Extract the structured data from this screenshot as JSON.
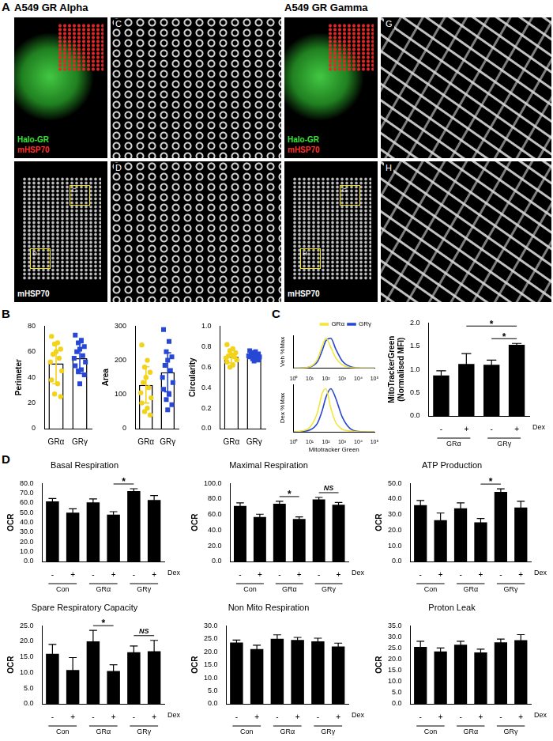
{
  "figure": {
    "panel_letters": [
      "A",
      "B",
      "C",
      "D"
    ],
    "panel_A": {
      "left": {
        "title": "A549 GR Alpha",
        "overlay_labels": [
          "Halo-GR",
          "mHSP70"
        ],
        "gray_label": "mHSP70",
        "inset_letters": [
          "C",
          "D"
        ]
      },
      "right": {
        "title": "A549 GR Gamma",
        "overlay_labels": [
          "Halo-GR",
          "mHSP70"
        ],
        "gray_label": "mHSP70",
        "inset_letters": [
          "G",
          "H"
        ]
      }
    }
  },
  "chart_data": [
    {
      "type": "bar",
      "y_label": "Perimeter",
      "categories": [
        "GRα",
        "GRγ"
      ],
      "values": [
        51,
        55
      ],
      "errors": [
        16,
        12
      ],
      "color": "#ffffff",
      "points": [
        {
          "color": "#f2d31b",
          "marker": "circle",
          "values": [
            72,
            67,
            66,
            62,
            60,
            58,
            55,
            52,
            45,
            38,
            35,
            27,
            25
          ]
        },
        {
          "color": "#2747d4",
          "marker": "square",
          "values": [
            73,
            69,
            67,
            64,
            62,
            60,
            57,
            55,
            52,
            49,
            46,
            45,
            42,
            35
          ]
        }
      ],
      "ylim": [
        0,
        80
      ],
      "yticks": [
        0,
        20,
        40,
        60,
        80
      ],
      "grid": false
    },
    {
      "type": "bar",
      "y_label": "Area",
      "categories": [
        "GRα",
        "GRγ"
      ],
      "values": [
        128,
        165
      ],
      "errors": [
        53,
        57
      ],
      "color": "#ffffff",
      "points": [
        {
          "color": "#f2d31b",
          "marker": "circle",
          "values": [
            245,
            200,
            180,
            165,
            150,
            135,
            120,
            105,
            90,
            75,
            60,
            50,
            40
          ]
        },
        {
          "color": "#2747d4",
          "marker": "square",
          "values": [
            290,
            255,
            225,
            210,
            200,
            185,
            170,
            150,
            135,
            115,
            100,
            85,
            70,
            55
          ]
        }
      ],
      "ylim": [
        0,
        300
      ],
      "yticks": [
        0,
        100,
        200,
        300
      ],
      "grid": false
    },
    {
      "type": "bar",
      "y_label": "Circularity",
      "categories": [
        "GRα",
        "GRγ"
      ],
      "values": [
        0.7,
        0.71
      ],
      "errors": [
        0.06,
        0.03
      ],
      "color": "#ffffff",
      "points": [
        {
          "color": "#f2d31b",
          "marker": "circle",
          "values": [
            0.82,
            0.78,
            0.76,
            0.74,
            0.72,
            0.71,
            0.7,
            0.69,
            0.67,
            0.65,
            0.62,
            0.6
          ]
        },
        {
          "color": "#2747d4",
          "marker": "square",
          "values": [
            0.76,
            0.75,
            0.74,
            0.73,
            0.72,
            0.72,
            0.71,
            0.71,
            0.7,
            0.7,
            0.69,
            0.68,
            0.67,
            0.66
          ]
        }
      ],
      "ylim": [
        0,
        1
      ],
      "yticks": [
        {
          "value": 0,
          "label": "0.0"
        },
        0.2,
        0.4,
        0.6,
        0.8,
        {
          "value": 1,
          "label": "1.0"
        }
      ],
      "grid": false
    },
    {
      "type": "line",
      "y_label": "Veh %Max",
      "log": "x",
      "x": [
        1,
        3,
        10,
        30,
        60,
        100,
        200,
        400,
        1000,
        3000,
        10000,
        100000
      ],
      "series": [
        {
          "name": "GRα",
          "color": "#f2e63a",
          "values": [
            0,
            1,
            5,
            30,
            75,
            100,
            70,
            35,
            12,
            3,
            1,
            0
          ]
        },
        {
          "name": "GRγ",
          "color": "#2747d4",
          "values": [
            0,
            1,
            4,
            22,
            60,
            92,
            100,
            65,
            25,
            6,
            1,
            0
          ]
        }
      ],
      "xlim": [
        1,
        100000
      ],
      "xticks": [
        {
          "value": 1,
          "label": "10⁰"
        },
        {
          "value": 10,
          "label": "10¹"
        },
        {
          "value": 100,
          "label": "10²"
        },
        {
          "value": 1000,
          "label": "10³"
        },
        {
          "value": 10000,
          "label": "10⁴"
        },
        {
          "value": 100000,
          "label": "10⁵"
        }
      ],
      "ylim": [
        0,
        110
      ],
      "yticks": [
        0,
        50,
        100
      ],
      "tick_labels": "x",
      "legend": "top-right",
      "grid": false
    },
    {
      "type": "line",
      "y_label": "Dex %Max",
      "x_label": "Mitotracker Green",
      "log": "x",
      "x": [
        1,
        3,
        10,
        30,
        60,
        100,
        200,
        400,
        1000,
        3000,
        10000,
        100000
      ],
      "series": [
        {
          "name": "GRα",
          "color": "#f2e63a",
          "values": [
            0,
            2,
            10,
            45,
            90,
            100,
            55,
            22,
            6,
            2,
            0,
            0
          ]
        },
        {
          "name": "GRγ",
          "color": "#2747d4",
          "values": [
            0,
            1,
            4,
            20,
            50,
            80,
            100,
            78,
            35,
            8,
            1,
            0
          ]
        }
      ],
      "xlim": [
        1,
        100000
      ],
      "xticks": [
        {
          "value": 1,
          "label": "10⁰"
        },
        {
          "value": 10,
          "label": "10¹"
        },
        {
          "value": 100,
          "label": "10²"
        },
        {
          "value": 1000,
          "label": "10³"
        },
        {
          "value": 10000,
          "label": "10⁴"
        },
        {
          "value": 100000,
          "label": "10⁵"
        }
      ],
      "ylim": [
        0,
        110
      ],
      "yticks": [
        0,
        50,
        100
      ],
      "tick_labels": "x",
      "grid": false
    },
    {
      "type": "bar",
      "y_label": [
        "MitoTrackerGreen",
        "(Normalised MFI)"
      ],
      "categories": [
        "-",
        "+",
        "-",
        "+"
      ],
      "groups": [
        "GRα",
        "GRγ"
      ],
      "x_label": "Dex",
      "values": [
        0.87,
        1.12,
        1.1,
        1.53
      ],
      "errors": [
        0.1,
        0.22,
        0.1,
        0.03
      ],
      "color": "#000000",
      "annotations": [
        {
          "text": "*",
          "from": 2,
          "to": 3
        },
        {
          "text": "*",
          "from": 1,
          "to": 3
        }
      ],
      "ylim": [
        0,
        2
      ],
      "yticks": [
        {
          "value": 0,
          "label": "0.0"
        },
        0.5,
        {
          "value": 1,
          "label": "1.0"
        },
        1.5,
        {
          "value": 2,
          "label": "2.0"
        }
      ],
      "grid": false
    },
    {
      "type": "bar",
      "title": "Basal Respiration",
      "y_label": "OCR",
      "categories": [
        "-",
        "+",
        "-",
        "+",
        "-",
        "+"
      ],
      "groups": [
        "Con",
        "GRα",
        "GRγ"
      ],
      "x_label": "Dex",
      "values": [
        61.5,
        50,
        60.5,
        48,
        72,
        63
      ],
      "errors": [
        3,
        4,
        3.5,
        3,
        2.5,
        4.5
      ],
      "color": "#000000",
      "annotations": [
        {
          "text": "*",
          "from": 3,
          "to": 4
        }
      ],
      "ylim": [
        0,
        80
      ],
      "yticks": [
        {
          "value": 0,
          "label": "0.0"
        },
        {
          "value": 10,
          "label": "10.0"
        },
        {
          "value": 20,
          "label": "20.0"
        },
        {
          "value": 30,
          "label": "30.0"
        },
        {
          "value": 40,
          "label": "40.0"
        },
        {
          "value": 50,
          "label": "50.0"
        },
        {
          "value": 60,
          "label": "60.0"
        },
        {
          "value": 70,
          "label": "70.0"
        },
        {
          "value": 80,
          "label": "80.0"
        }
      ],
      "grid": false
    },
    {
      "type": "bar",
      "title": "Maximal Respiration",
      "y_label": "OCR",
      "categories": [
        "-",
        "+",
        "-",
        "+",
        "-",
        "+"
      ],
      "groups": [
        "Con",
        "GRα",
        "GRγ"
      ],
      "x_label": "Dex",
      "values": [
        71,
        57,
        74,
        54.5,
        79.5,
        72.5
      ],
      "errors": [
        4,
        3.5,
        3,
        2.5,
        2.5,
        3
      ],
      "color": "#000000",
      "annotations": [
        {
          "text": "*",
          "from": 2,
          "to": 3
        },
        {
          "text": "NS",
          "from": 4,
          "to": 5
        }
      ],
      "ylim": [
        0,
        100
      ],
      "yticks": [
        {
          "value": 0,
          "label": "0.0"
        },
        {
          "value": 20,
          "label": "20.0"
        },
        {
          "value": 40,
          "label": "40.0"
        },
        {
          "value": 60,
          "label": "60.0"
        },
        {
          "value": 80,
          "label": "80.0"
        },
        {
          "value": 100,
          "label": "100.0"
        }
      ],
      "grid": false
    },
    {
      "type": "bar",
      "title": "ATP Production",
      "y_label": "OCR",
      "categories": [
        "-",
        "+",
        "-",
        "+",
        "-",
        "+"
      ],
      "groups": [
        "Con",
        "GRα",
        "GRγ"
      ],
      "x_label": "Dex",
      "values": [
        36,
        26.5,
        34,
        25,
        44.5,
        34.5
      ],
      "errors": [
        3,
        4.5,
        3.5,
        2.5,
        2,
        4
      ],
      "color": "#000000",
      "annotations": [
        {
          "text": "*",
          "from": 3,
          "to": 4
        }
      ],
      "ylim": [
        0,
        50
      ],
      "yticks": [
        {
          "value": 0,
          "label": "0.0"
        },
        {
          "value": 10,
          "label": "10.0"
        },
        {
          "value": 20,
          "label": "20.0"
        },
        {
          "value": 30,
          "label": "30.0"
        },
        {
          "value": 40,
          "label": "40.0"
        },
        {
          "value": 50,
          "label": "50.0"
        }
      ],
      "grid": false
    },
    {
      "type": "bar",
      "title": "Spare Respiratory Capacity",
      "y_label": "OCR",
      "categories": [
        "-",
        "+",
        "-",
        "+",
        "-",
        "+"
      ],
      "groups": [
        "Con",
        "GRα",
        "GRγ"
      ],
      "x_label": "Dex",
      "values": [
        16,
        10.8,
        20,
        10.5,
        16.5,
        16.8
      ],
      "errors": [
        3,
        4,
        3.5,
        2,
        2,
        3.5
      ],
      "color": "#000000",
      "annotations": [
        {
          "text": "*",
          "from": 2,
          "to": 3
        },
        {
          "text": "NS",
          "from": 4,
          "to": 5
        }
      ],
      "ylim": [
        0,
        25
      ],
      "yticks": [
        {
          "value": 0,
          "label": "0.0"
        },
        {
          "value": 5,
          "label": "5.0"
        },
        {
          "value": 10,
          "label": "10.0"
        },
        {
          "value": 15,
          "label": "15.0"
        },
        {
          "value": 20,
          "label": "20.0"
        },
        {
          "value": 25,
          "label": "25.0"
        }
      ],
      "grid": false
    },
    {
      "type": "bar",
      "title": "Non Mito Respiration",
      "y_label": "OCR",
      "categories": [
        "-",
        "+",
        "-",
        "+",
        "-",
        "+"
      ],
      "groups": [
        "Con",
        "GRα",
        "GRγ"
      ],
      "x_label": "Dex",
      "values": [
        23.5,
        21,
        25,
        24.5,
        24,
        22
      ],
      "errors": [
        1,
        1.5,
        1.5,
        1,
        1.2,
        1.3
      ],
      "color": "#000000",
      "ylim": [
        0,
        30
      ],
      "yticks": [
        {
          "value": 0,
          "label": "0.0"
        },
        {
          "value": 5,
          "label": "5.0"
        },
        {
          "value": 10,
          "label": "10.0"
        },
        {
          "value": 15,
          "label": "15.0"
        },
        {
          "value": 20,
          "label": "20.0"
        },
        {
          "value": 25,
          "label": "25.0"
        },
        {
          "value": 30,
          "label": "30.0"
        }
      ],
      "grid": false
    },
    {
      "type": "bar",
      "title": "Proton Leak",
      "y_label": "OCR",
      "categories": [
        "-",
        "+",
        "-",
        "+",
        "-",
        "+"
      ],
      "groups": [
        "Con",
        "GRα",
        "GRγ"
      ],
      "x_label": "Dex",
      "values": [
        25.5,
        23.5,
        26.5,
        23,
        27.5,
        28.5
      ],
      "errors": [
        2.5,
        1.5,
        1.5,
        1.5,
        1.5,
        2.5
      ],
      "color": "#000000",
      "ylim": [
        0,
        35
      ],
      "yticks": [
        {
          "value": 0,
          "label": "0.0"
        },
        {
          "value": 5,
          "label": "5.0"
        },
        {
          "value": 10,
          "label": "10.0"
        },
        {
          "value": 15,
          "label": "15.0"
        },
        {
          "value": 20,
          "label": "20.0"
        },
        {
          "value": 25,
          "label": "25.0"
        },
        {
          "value": 30,
          "label": "30.0"
        },
        {
          "value": 35,
          "label": "35.0"
        }
      ],
      "grid": false
    }
  ]
}
